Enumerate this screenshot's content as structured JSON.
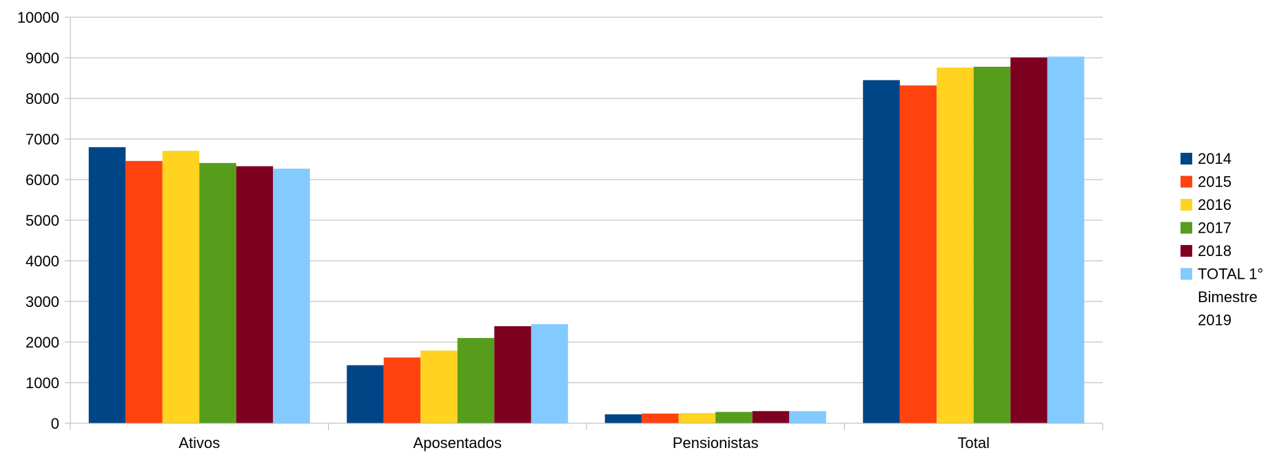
{
  "chart_data": {
    "type": "bar",
    "categories": [
      "Ativos",
      "Aposentados",
      "Pensionistas",
      "Total"
    ],
    "series": [
      {
        "name": "2014",
        "color": "#004586",
        "values": [
          6800,
          1430,
          220,
          8450
        ]
      },
      {
        "name": "2015",
        "color": "#ff420e",
        "values": [
          6460,
          1620,
          240,
          8320
        ]
      },
      {
        "name": "2016",
        "color": "#ffd320",
        "values": [
          6710,
          1790,
          250,
          8760
        ]
      },
      {
        "name": "2017",
        "color": "#579d1c",
        "values": [
          6410,
          2100,
          280,
          8780
        ]
      },
      {
        "name": "2018",
        "color": "#7e0021",
        "values": [
          6330,
          2390,
          300,
          9010
        ]
      },
      {
        "name": "TOTAL 1° Bimestre 2019",
        "legend_lines": [
          "TOTAL 1°",
          "Bimestre",
          "2019"
        ],
        "color": "#83caff",
        "values": [
          6270,
          2440,
          300,
          9030
        ]
      }
    ],
    "ylim": [
      0,
      10000
    ],
    "yticks": [
      "0",
      "1000",
      "2000",
      "3000",
      "4000",
      "5000",
      "6000",
      "7000",
      "8000",
      "9000",
      "10000"
    ],
    "grid": true,
    "legend_position": "right",
    "title": "",
    "xlabel": "",
    "ylabel": ""
  }
}
